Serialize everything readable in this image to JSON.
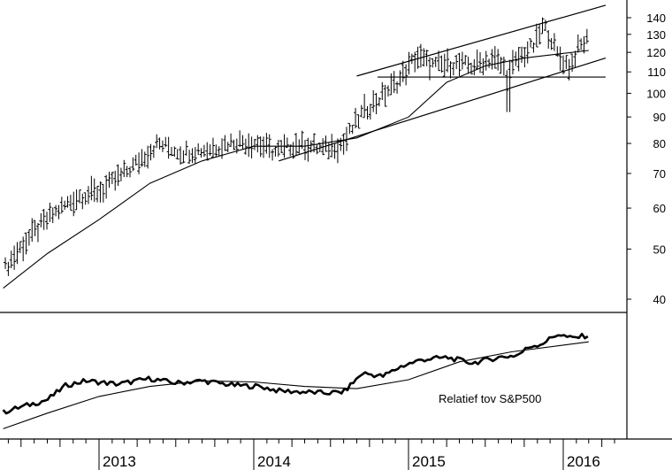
{
  "chart_data": [
    {
      "type": "line",
      "panel": "price",
      "scale": "log",
      "ylim": [
        36,
        148
      ],
      "y_ticks": [
        40,
        50,
        60,
        70,
        80,
        90,
        100,
        110,
        120,
        130,
        140
      ],
      "x_ticks": [
        "2013",
        "2014",
        "2015",
        "2016"
      ],
      "x_tick_dates": [
        "2013-01-01",
        "2014-01-01",
        "2015-01-01",
        "2016-01-01"
      ],
      "x_range": [
        "2012-05-20",
        "2016-04-10"
      ],
      "price_bars": {
        "dates": [
          "2012-05-25",
          "2012-07-15",
          "2012-09-10",
          "2012-11-10",
          "2013-01-10",
          "2013-03-20",
          "2013-05-20",
          "2013-07-15",
          "2013-09-15",
          "2013-11-20",
          "2014-01-10",
          "2014-02-20",
          "2014-04-15",
          "2014-06-15",
          "2014-08-01",
          "2014-09-15",
          "2014-10-20",
          "2014-12-10",
          "2015-01-20",
          "2015-03-01",
          "2015-04-15",
          "2015-06-01",
          "2015-07-20",
          "2015-08-24",
          "2015-09-15",
          "2015-10-25",
          "2015-11-15",
          "2015-12-01",
          "2015-12-20",
          "2016-01-15",
          "2016-02-05",
          "2016-03-01"
        ],
        "close": [
          46,
          52,
          58,
          63,
          65,
          72,
          80,
          77,
          78,
          81,
          80,
          77,
          80,
          78,
          80,
          92,
          97,
          106,
          118,
          113,
          114,
          113,
          117,
          110,
          116,
          124,
          135,
          129,
          118,
          113,
          122,
          128
        ]
      },
      "moving_average": {
        "dates": [
          "2012-05-20",
          "2012-09-01",
          "2013-01-01",
          "2013-05-01",
          "2013-09-01",
          "2014-01-01",
          "2014-05-01",
          "2014-09-01",
          "2015-01-01",
          "2015-04-01",
          "2015-07-01",
          "2015-10-01",
          "2015-12-15",
          "2016-03-01"
        ],
        "values": [
          42,
          49,
          57,
          67,
          74,
          79,
          79,
          82,
          90,
          105,
          113,
          117,
          119,
          121
        ]
      },
      "trend_lines": [
        {
          "name": "upper-channel",
          "dates": [
            "2014-09-01",
            "2016-04-10"
          ],
          "values": [
            108,
            148
          ]
        },
        {
          "name": "lower-channel",
          "dates": [
            "2014-03-01",
            "2016-04-10"
          ],
          "values": [
            74,
            117
          ]
        },
        {
          "name": "support",
          "dates": [
            "2014-10-20",
            "2016-04-10"
          ],
          "values": [
            107.5,
            107.5
          ]
        }
      ]
    },
    {
      "type": "line",
      "panel": "relative-strength",
      "annotation": "Relatief tov S&P500",
      "ylim": [
        0,
        10
      ],
      "series": [
        {
          "dates": [
            "2012-05-20",
            "2012-07-15",
            "2012-09-01",
            "2012-10-15",
            "2012-12-01",
            "2013-02-15",
            "2013-05-01",
            "2013-07-01",
            "2013-09-01",
            "2013-11-15",
            "2014-01-15",
            "2014-03-01",
            "2014-05-01",
            "2014-06-15",
            "2014-08-01",
            "2014-09-15",
            "2014-11-01",
            "2014-12-15",
            "2015-02-01",
            "2015-04-01",
            "2015-06-01",
            "2015-08-01",
            "2015-09-15",
            "2015-10-15",
            "2015-11-10",
            "2015-12-20",
            "2016-01-20",
            "2016-03-01"
          ],
          "values": [
            2.1,
            2.7,
            3.2,
            4.5,
            4.9,
            4.6,
            5.1,
            4.7,
            4.9,
            4.5,
            4.4,
            4.0,
            3.9,
            3.8,
            3.9,
            5.6,
            5.3,
            6.2,
            6.8,
            7.0,
            6.5,
            7.0,
            7.2,
            8.0,
            8.2,
            9.1,
            8.7,
            9.0
          ]
        },
        {
          "dates": [
            "2012-05-20",
            "2012-09-01",
            "2013-01-01",
            "2013-05-01",
            "2013-09-01",
            "2014-01-01",
            "2014-05-01",
            "2014-09-01",
            "2015-01-01",
            "2015-05-01",
            "2015-09-01",
            "2016-03-01"
          ],
          "values": [
            0.6,
            2.0,
            3.5,
            4.4,
            4.9,
            4.8,
            4.4,
            4.2,
            5.0,
            6.6,
            7.5,
            8.4
          ]
        }
      ]
    }
  ]
}
